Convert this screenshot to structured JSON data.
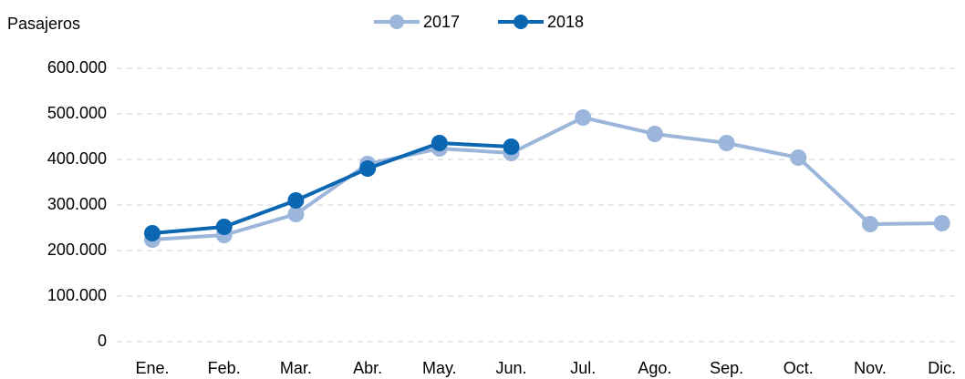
{
  "chart_data": {
    "type": "line",
    "y_axis_label": "Pasajeros",
    "categories": [
      "Ene.",
      "Feb.",
      "Mar.",
      "Abr.",
      "May.",
      "Jun.",
      "Jul.",
      "Ago.",
      "Sep.",
      "Oct.",
      "Nov.",
      "Dic."
    ],
    "series": [
      {
        "name": "2017",
        "color": "#9bb6da",
        "values": [
          224000,
          234000,
          280000,
          390000,
          424000,
          414000,
          492000,
          456000,
          436000,
          404000,
          258000,
          260000
        ]
      },
      {
        "name": "2018",
        "color": "#0b67b2",
        "values": [
          238000,
          252000,
          310000,
          380000,
          436000,
          428000,
          null,
          null,
          null,
          null,
          null,
          null
        ]
      }
    ],
    "ylim": [
      0,
      600000
    ],
    "yticks": [
      0,
      {
        "value": 100000,
        "label": "100.000"
      },
      {
        "value": 200000,
        "label": "200.000"
      },
      {
        "value": 300000,
        "label": "300.000"
      },
      {
        "value": 400000,
        "label": "400.000"
      },
      {
        "value": 500000,
        "label": "500.000"
      },
      {
        "value": 600000,
        "label": "600.000"
      }
    ],
    "grid": true,
    "legend": "top"
  }
}
